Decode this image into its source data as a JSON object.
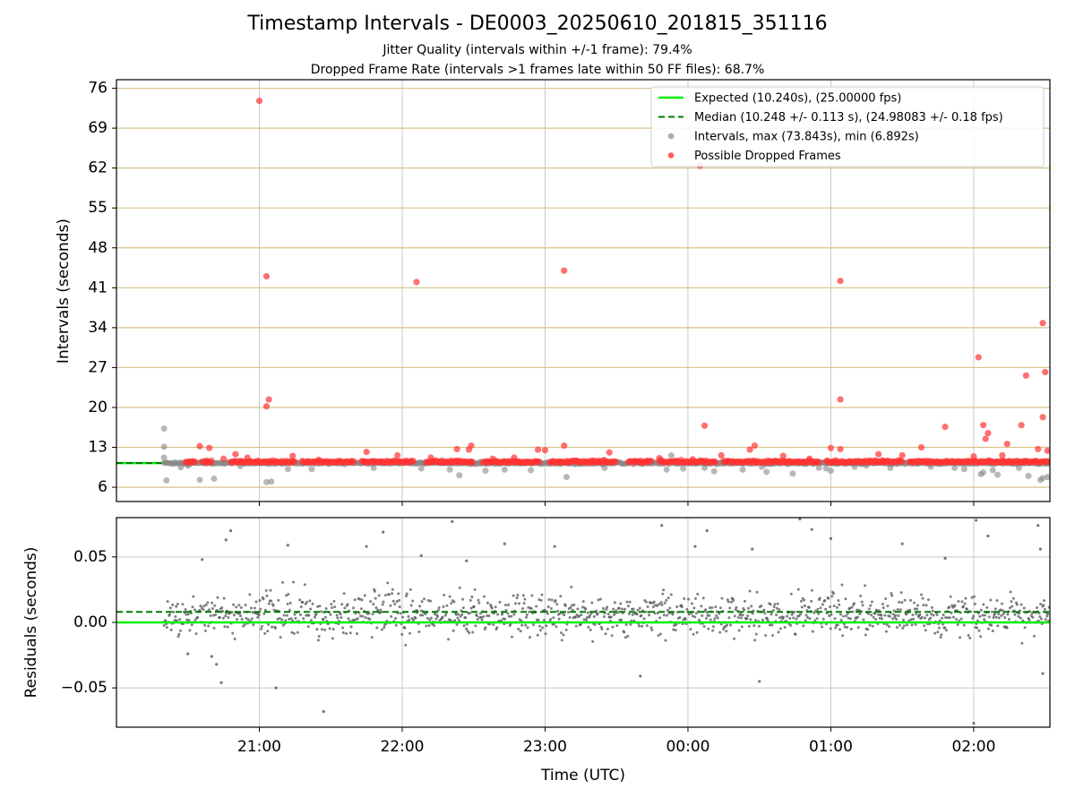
{
  "title": "Timestamp Intervals - DE0003_20250610_201815_351116",
  "subtitle_1": "Jitter Quality (intervals within +/-1 frame): 79.4%",
  "subtitle_2": "Dropped Frame Rate (intervals >1 frames late within 50 FF files): 68.7%",
  "chart_data": [
    {
      "type": "scatter",
      "panel": "top",
      "xlabel": "",
      "ylabel": "Intervals (seconds)",
      "x_unit": "time (UTC)",
      "xlim": [
        "20:00",
        "02:32"
      ],
      "ylim": [
        3.5,
        77.5
      ],
      "y_ticks": [
        6,
        13,
        20,
        27,
        34,
        41,
        48,
        55,
        62,
        69,
        76
      ],
      "x_ticks": [
        "21:00",
        "22:00",
        "23:00",
        "00:00",
        "01:00",
        "02:00"
      ],
      "grid": "x and horizontal lines at y ticks",
      "legend_position": "top-right",
      "colors": {
        "expected": "#00ee00",
        "median": "#007a00",
        "intervals": "#888888",
        "dropped": "#ff3333",
        "hgrid": "#d8c28a",
        "vgrid": "#c8c8c8"
      },
      "series": [
        {
          "name": "Expected (10.240s), (25.00000 fps)",
          "kind": "hline",
          "y": 10.24
        },
        {
          "name": "Median (10.248 +/- 0.113 s), (24.98083 +/- 0.18 fps)",
          "kind": "hline-dashed",
          "y": 10.248
        },
        {
          "name": "Intervals, max (73.843s), min (6.892s)",
          "kind": "points",
          "points": [
            [
              "20:20",
              16.3
            ],
            [
              "20:20",
              13.1
            ],
            [
              "20:20",
              11.2
            ],
            [
              "20:21",
              7.2
            ],
            [
              "20:27",
              9.5
            ],
            [
              "20:30",
              9.8
            ],
            [
              "20:35",
              7.3
            ],
            [
              "20:38",
              10.7
            ],
            [
              "20:41",
              7.5
            ],
            [
              "20:52",
              9.7
            ],
            [
              "21:03",
              6.9
            ],
            [
              "21:05",
              7.0
            ],
            [
              "21:12",
              9.2
            ],
            [
              "21:22",
              9.2
            ],
            [
              "21:35",
              10.4
            ],
            [
              "21:48",
              9.4
            ],
            [
              "22:08",
              9.3
            ],
            [
              "22:20",
              9.1
            ],
            [
              "22:24",
              8.1
            ],
            [
              "22:33",
              10.5
            ],
            [
              "22:35",
              8.9
            ],
            [
              "22:43",
              9.1
            ],
            [
              "22:54",
              9.0
            ],
            [
              "23:09",
              7.8
            ],
            [
              "23:25",
              9.4
            ],
            [
              "23:43",
              10.6
            ],
            [
              "23:51",
              9.1
            ],
            [
              "23:53",
              11.6
            ],
            [
              "23:58",
              9.3
            ],
            [
              "00:07",
              9.4
            ],
            [
              "00:11",
              8.8
            ],
            [
              "00:23",
              9.1
            ],
            [
              "00:31",
              9.6
            ],
            [
              "00:33",
              8.7
            ],
            [
              "00:44",
              8.4
            ],
            [
              "00:55",
              9.4
            ],
            [
              "00:58",
              9.3
            ],
            [
              "01:00",
              8.9
            ],
            [
              "01:05",
              10.6
            ],
            [
              "01:10",
              9.6
            ],
            [
              "01:15",
              9.8
            ],
            [
              "01:25",
              9.4
            ],
            [
              "01:33",
              10.3
            ],
            [
              "01:42",
              9.6
            ],
            [
              "01:52",
              9.4
            ],
            [
              "01:56",
              9.2
            ],
            [
              "02:03",
              8.3
            ],
            [
              "02:04",
              8.6
            ],
            [
              "02:08",
              9.0
            ],
            [
              "02:10",
              8.2
            ],
            [
              "02:15",
              10.6
            ],
            [
              "02:19",
              9.4
            ],
            [
              "02:23",
              8.0
            ],
            [
              "02:27",
              10.4
            ],
            [
              "02:28",
              7.3
            ],
            [
              "02:29",
              7.6
            ],
            [
              "02:31",
              7.8
            ]
          ]
        },
        {
          "name": "Possible Dropped Frames",
          "kind": "points",
          "points": [
            [
              "21:00",
              73.8
            ],
            [
              "21:03",
              43.0
            ],
            [
              "21:04",
              21.4
            ],
            [
              "21:03",
              20.2
            ],
            [
              "22:06",
              42.0
            ],
            [
              "23:08",
              44.0
            ],
            [
              "00:05",
              62.4
            ],
            [
              "01:04",
              42.2
            ],
            [
              "01:04",
              21.4
            ],
            [
              "02:02",
              28.8
            ],
            [
              "02:22",
              25.6
            ],
            [
              "02:29",
              34.8
            ],
            [
              "02:30",
              26.2
            ],
            [
              "02:29",
              18.3
            ],
            [
              "00:07",
              16.8
            ],
            [
              "01:48",
              16.6
            ],
            [
              "02:06",
              15.5
            ],
            [
              "02:04",
              16.9
            ],
            [
              "02:20",
              16.9
            ],
            [
              "02:05",
              14.5
            ],
            [
              "02:14",
              13.6
            ],
            [
              "20:35",
              13.2
            ],
            [
              "20:39",
              12.9
            ],
            [
              "22:23",
              12.7
            ],
            [
              "22:29",
              13.3
            ],
            [
              "22:28",
              12.6
            ],
            [
              "23:08",
              13.3
            ],
            [
              "00:28",
              13.3
            ],
            [
              "01:38",
              13.0
            ],
            [
              "01:00",
              12.9
            ],
            [
              "01:04",
              12.7
            ],
            [
              "23:00",
              12.5
            ],
            [
              "22:57",
              12.6
            ],
            [
              "00:26",
              12.6
            ],
            [
              "23:27",
              12.1
            ],
            [
              "21:45",
              12.2
            ],
            [
              "21:14",
              11.5
            ],
            [
              "20:50",
              11.8
            ],
            [
              "22:47",
              11.2
            ],
            [
              "00:14",
              11.6
            ],
            [
              "02:31",
              12.4
            ],
            [
              "02:27",
              12.7
            ],
            [
              "20:45",
              11.0
            ],
            [
              "20:55",
              11.2
            ],
            [
              "21:25",
              10.8
            ],
            [
              "21:58",
              11.6
            ],
            [
              "22:12",
              11.2
            ],
            [
              "22:38",
              11.0
            ],
            [
              "23:48",
              11.1
            ],
            [
              "00:02",
              10.9
            ],
            [
              "00:40",
              11.5
            ],
            [
              "00:51",
              11.0
            ],
            [
              "01:20",
              11.8
            ],
            [
              "01:30",
              11.6
            ],
            [
              "02:00",
              11.4
            ],
            [
              "02:12",
              11.6
            ]
          ]
        }
      ]
    },
    {
      "type": "scatter",
      "panel": "bottom",
      "xlabel": "Time (UTC)",
      "ylabel": "Residuals (seconds)",
      "xlim": [
        "20:00",
        "02:32"
      ],
      "ylim": [
        -0.08,
        0.08
      ],
      "y_ticks": [
        0.05,
        0.0,
        -0.05
      ],
      "y_tick_labels": [
        "0.05",
        "0.00",
        "−0.05"
      ],
      "x_ticks": [
        "21:00",
        "22:00",
        "23:00",
        "00:00",
        "01:00",
        "02:00"
      ],
      "grid": "on",
      "series": [
        {
          "name": "",
          "kind": "hline",
          "y": 0.0
        },
        {
          "name": "",
          "kind": "hline-dashed",
          "y": 0.008
        },
        {
          "name": "",
          "kind": "points",
          "points": [
            [
              "20:48",
              0.07
            ],
            [
              "20:46",
              0.063
            ],
            [
              "20:44",
              -0.046
            ],
            [
              "21:07",
              -0.05
            ],
            [
              "21:12",
              0.059
            ],
            [
              "21:27",
              -0.068
            ],
            [
              "21:45",
              0.058
            ],
            [
              "21:52",
              0.069
            ],
            [
              "22:08",
              0.051
            ],
            [
              "22:21",
              0.077
            ],
            [
              "22:27",
              0.047
            ],
            [
              "22:43",
              0.06
            ],
            [
              "23:04",
              0.058
            ],
            [
              "23:40",
              -0.041
            ],
            [
              "23:49",
              0.074
            ],
            [
              "00:03",
              0.058
            ],
            [
              "00:08",
              0.07
            ],
            [
              "00:27",
              0.056
            ],
            [
              "00:30",
              -0.045
            ],
            [
              "00:47",
              0.079
            ],
            [
              "00:52",
              0.071
            ],
            [
              "01:00",
              0.064
            ],
            [
              "01:30",
              0.06
            ],
            [
              "01:48",
              0.049
            ],
            [
              "02:00",
              -0.077
            ],
            [
              "02:01",
              0.078
            ],
            [
              "02:06",
              0.066
            ],
            [
              "02:27",
              0.074
            ],
            [
              "02:28",
              0.056
            ],
            [
              "02:29",
              -0.039
            ],
            [
              "20:36",
              0.048
            ],
            [
              "20:40",
              -0.026
            ],
            [
              "20:42",
              -0.032
            ],
            [
              "20:30",
              -0.024
            ]
          ],
          "note_points": "plus ~1100 further dense points, mostly within ±0.035"
        }
      ]
    }
  ],
  "legend": [
    {
      "label": "Expected (10.240s), (25.00000 fps)",
      "icon": "solid-line"
    },
    {
      "label": "Median (10.248 +/- 0.113 s), (24.98083 +/- 0.18 fps)",
      "icon": "dashed-line"
    },
    {
      "label": "Intervals, max (73.843s), min (6.892s)",
      "icon": "gray-dot"
    },
    {
      "label": "Possible Dropped Frames",
      "icon": "red-dot"
    }
  ]
}
